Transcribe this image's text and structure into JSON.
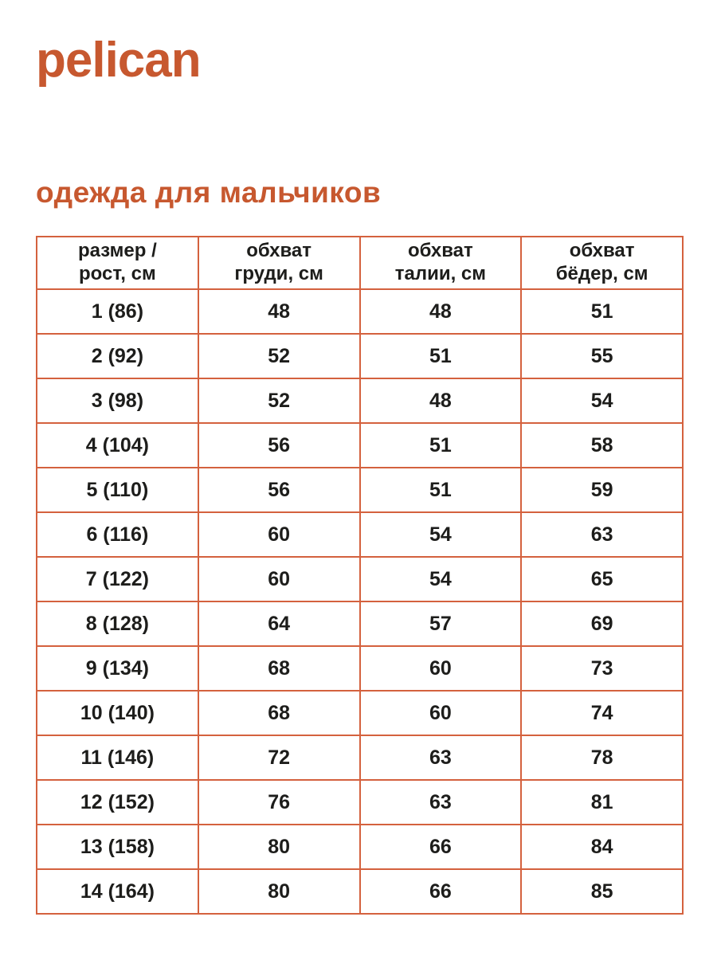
{
  "brand": {
    "logo_text": "pelican"
  },
  "heading": {
    "title": "одежда для мальчиков"
  },
  "colors": {
    "accent": "#c7582f",
    "table_border": "#d4613e",
    "text": "#1d1d1b",
    "background": "#ffffff"
  },
  "table": {
    "columns": [
      "размер /\nрост, см",
      "обхват\nгруди, см",
      "обхват\nталии, см",
      "обхват\nбёдер, см"
    ],
    "rows": [
      [
        "1 (86)",
        "48",
        "48",
        "51"
      ],
      [
        "2 (92)",
        "52",
        "51",
        "55"
      ],
      [
        "3 (98)",
        "52",
        "48",
        "54"
      ],
      [
        "4 (104)",
        "56",
        "51",
        "58"
      ],
      [
        "5 (110)",
        "56",
        "51",
        "59"
      ],
      [
        "6 (116)",
        "60",
        "54",
        "63"
      ],
      [
        "7 (122)",
        "60",
        "54",
        "65"
      ],
      [
        "8 (128)",
        "64",
        "57",
        "69"
      ],
      [
        "9 (134)",
        "68",
        "60",
        "73"
      ],
      [
        "10 (140)",
        "68",
        "60",
        "74"
      ],
      [
        "11 (146)",
        "72",
        "63",
        "78"
      ],
      [
        "12 (152)",
        "76",
        "63",
        "81"
      ],
      [
        "13 (158)",
        "80",
        "66",
        "84"
      ],
      [
        "14 (164)",
        "80",
        "66",
        "85"
      ]
    ]
  }
}
